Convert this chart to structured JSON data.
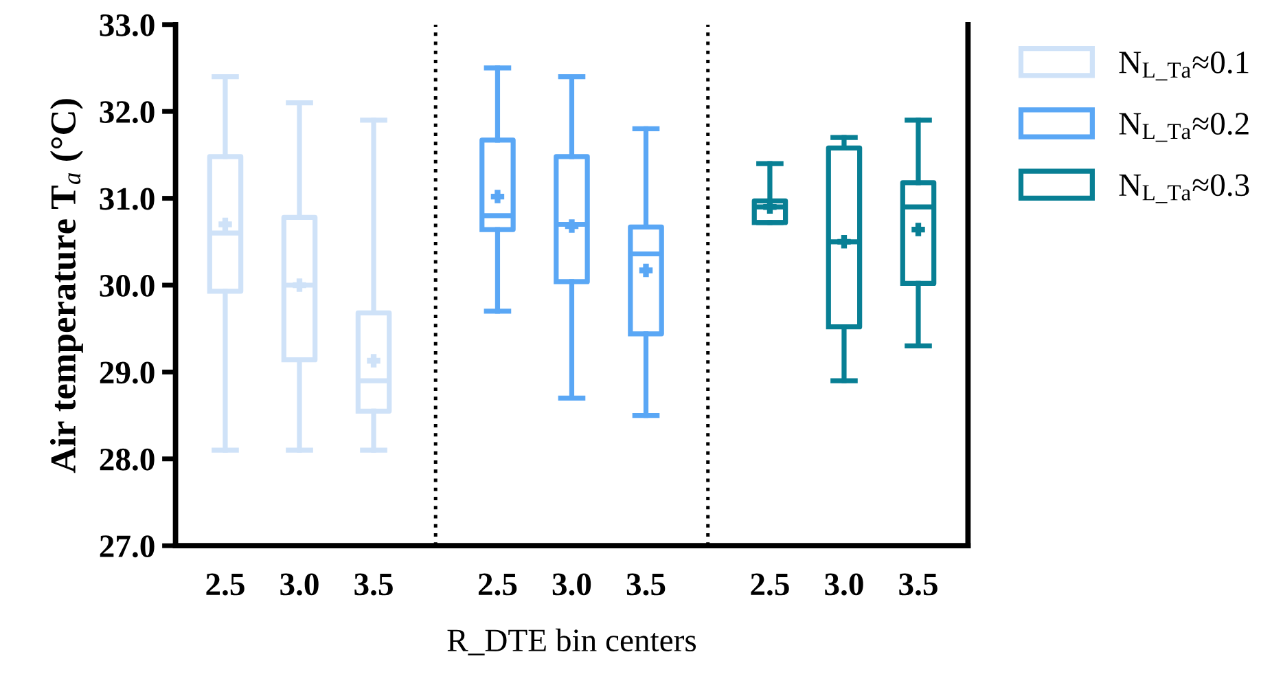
{
  "chart_data": {
    "type": "box",
    "xlabel": "R_DTE bin centers",
    "ylabel": "Air temperature T$_{a}$ (°C)",
    "categories": [
      "2.5",
      "3.0",
      "3.5",
      "2.5",
      "3.0",
      "3.5",
      "2.5",
      "3.0",
      "3.5"
    ],
    "ylim": [
      27.0,
      33.0
    ],
    "yticks": [
      {
        "value": 27,
        "label": "27.0"
      },
      {
        "value": 28,
        "label": "28.0"
      },
      {
        "value": 29,
        "label": "29.0"
      },
      {
        "value": 30,
        "label": "30.0"
      },
      {
        "value": 31,
        "label": "31.0"
      },
      {
        "value": 32,
        "label": "32.0"
      },
      {
        "value": 33,
        "label": "33.0"
      }
    ],
    "grid": false,
    "legend": "top right",
    "marker": "cross",
    "series": [
      {
        "name": "N$_{L_Ta}$≈0.1",
        "color": "#cfe2f8",
        "boxes": [
          {
            "low": 28.1,
            "q1": 29.93,
            "median": 30.6,
            "q3": 31.48,
            "high": 32.4,
            "mean": 30.7
          },
          {
            "low": 28.1,
            "q1": 29.14,
            "median": 30.0,
            "q3": 30.78,
            "high": 32.1,
            "mean": 30.0
          },
          {
            "low": 28.1,
            "q1": 28.55,
            "median": 28.9,
            "q3": 29.68,
            "high": 31.9,
            "mean": 29.13
          },
          null,
          null,
          null,
          null,
          null,
          null
        ]
      },
      {
        "name": "N$_{L_Ta}$≈0.2",
        "color": "#5aa7f5",
        "boxes": [
          null,
          null,
          null,
          {
            "low": 29.7,
            "q1": 30.64,
            "median": 30.8,
            "q3": 31.67,
            "high": 32.5,
            "mean": 31.02
          },
          {
            "low": 28.7,
            "q1": 30.04,
            "median": 30.7,
            "q3": 31.48,
            "high": 32.4,
            "mean": 30.68
          },
          {
            "low": 28.5,
            "q1": 29.44,
            "median": 30.36,
            "q3": 30.67,
            "high": 31.8,
            "mean": 30.17
          },
          null,
          null,
          null
        ]
      },
      {
        "name": "N$_{L_Ta}$≈0.3",
        "color": "#087f94",
        "boxes": [
          null,
          null,
          null,
          null,
          null,
          null,
          {
            "low": 30.72,
            "q1": 30.72,
            "median": 30.9,
            "q3": 30.97,
            "high": 31.4,
            "mean": 30.9
          },
          {
            "low": 28.9,
            "q1": 29.52,
            "median": 30.5,
            "q3": 31.58,
            "high": 31.7,
            "mean": 30.5
          },
          {
            "low": 29.3,
            "q1": 30.02,
            "median": 30.9,
            "q3": 31.18,
            "high": 31.9,
            "mean": 30.64
          }
        ]
      }
    ]
  }
}
